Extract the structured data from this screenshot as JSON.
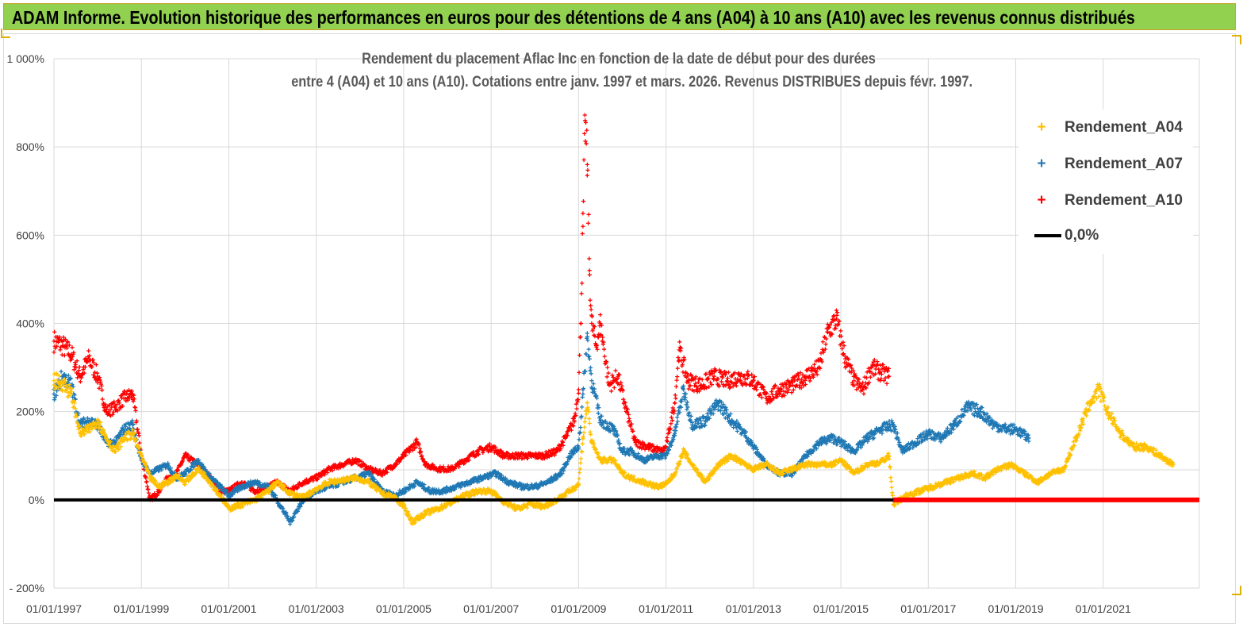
{
  "banner": {
    "title": "ADAM Informe. Evolution historique des performances en euros pour des détentions de 4 ans (A04) à 10 ans (A10) avec les revenus connus distribués"
  },
  "colors": {
    "banner_bg": "#92d050",
    "a04": "#ffc000",
    "a07": "#1f78b4",
    "a10": "#ff0000",
    "zero": "#000000",
    "grid": "#d9d9d9"
  },
  "chart_data": {
    "type": "scatter",
    "title_line1": "Rendement du placement Aflac Inc en fonction de la date de début pour des durées",
    "title_line2": "entre 4 (A04) et 10 ans (A10). Cotations entre janv. 1997 et mars. 2026. Revenus DISTRIBUES depuis févr. 1997.",
    "xlabel": "",
    "ylabel": "",
    "x_range": [
      1997.0,
      2023.2
    ],
    "ylim": [
      -200,
      1000
    ],
    "x_ticks": [
      {
        "x": 1997,
        "label": "01/01/1997"
      },
      {
        "x": 1999,
        "label": "01/01/1999"
      },
      {
        "x": 2001,
        "label": "01/01/2001"
      },
      {
        "x": 2003,
        "label": "01/01/2003"
      },
      {
        "x": 2005,
        "label": "01/01/2005"
      },
      {
        "x": 2007,
        "label": "01/01/2007"
      },
      {
        "x": 2009,
        "label": "01/01/2009"
      },
      {
        "x": 2011,
        "label": "01/01/2011"
      },
      {
        "x": 2013,
        "label": "01/01/2013"
      },
      {
        "x": 2015,
        "label": "01/01/2015"
      },
      {
        "x": 2017,
        "label": "01/01/2017"
      },
      {
        "x": 2019,
        "label": "01/01/2019"
      },
      {
        "x": 2021,
        "label": "01/01/2021"
      }
    ],
    "y_ticks": [
      {
        "y": 1000,
        "label": "1 000%"
      },
      {
        "y": 800,
        "label": "800%"
      },
      {
        "y": 600,
        "label": "600%"
      },
      {
        "y": 400,
        "label": "400%"
      },
      {
        "y": 200,
        "label": "200%"
      },
      {
        "y": 0,
        "label": "0%"
      },
      {
        "y": -200,
        "label": "- 200%"
      }
    ],
    "legend": [
      {
        "key": "a04",
        "label": "Rendement_A04"
      },
      {
        "key": "a07",
        "label": "Rendement_A07"
      },
      {
        "key": "a10",
        "label": "Rendement_A10"
      },
      {
        "key": "zero",
        "label": "0,0%"
      }
    ],
    "series": [
      {
        "name": "Rendement_A04",
        "key": "a04",
        "points": [
          [
            1997.0,
            270
          ],
          [
            1997.2,
            265
          ],
          [
            1997.4,
            240
          ],
          [
            1997.6,
            150
          ],
          [
            1997.8,
            160
          ],
          [
            1998.0,
            180
          ],
          [
            1998.2,
            140
          ],
          [
            1998.4,
            110
          ],
          [
            1998.6,
            140
          ],
          [
            1998.8,
            150
          ],
          [
            1999.0,
            100
          ],
          [
            1999.2,
            50
          ],
          [
            1999.4,
            30
          ],
          [
            1999.6,
            40
          ],
          [
            1999.8,
            55
          ],
          [
            2000.0,
            40
          ],
          [
            2000.3,
            70
          ],
          [
            2000.5,
            50
          ],
          [
            2000.8,
            10
          ],
          [
            2001.0,
            -20
          ],
          [
            2001.3,
            -10
          ],
          [
            2001.6,
            0
          ],
          [
            2001.9,
            20
          ],
          [
            2002.1,
            40
          ],
          [
            2002.4,
            15
          ],
          [
            2002.7,
            5
          ],
          [
            2003.0,
            25
          ],
          [
            2003.3,
            40
          ],
          [
            2003.6,
            45
          ],
          [
            2003.9,
            50
          ],
          [
            2004.2,
            40
          ],
          [
            2004.5,
            15
          ],
          [
            2004.8,
            5
          ],
          [
            2005.0,
            -15
          ],
          [
            2005.2,
            -50
          ],
          [
            2005.5,
            -30
          ],
          [
            2005.8,
            -20
          ],
          [
            2006.1,
            -5
          ],
          [
            2006.4,
            10
          ],
          [
            2006.7,
            20
          ],
          [
            2007.0,
            20
          ],
          [
            2007.3,
            -5
          ],
          [
            2007.6,
            -20
          ],
          [
            2007.9,
            -10
          ],
          [
            2008.2,
            -15
          ],
          [
            2008.5,
            0
          ],
          [
            2008.8,
            20
          ],
          [
            2009.0,
            35
          ],
          [
            2009.1,
            140
          ],
          [
            2009.2,
            220
          ],
          [
            2009.3,
            130
          ],
          [
            2009.5,
            90
          ],
          [
            2009.8,
            90
          ],
          [
            2010.0,
            60
          ],
          [
            2010.2,
            50
          ],
          [
            2010.5,
            40
          ],
          [
            2010.8,
            30
          ],
          [
            2011.0,
            35
          ],
          [
            2011.2,
            60
          ],
          [
            2011.4,
            110
          ],
          [
            2011.6,
            80
          ],
          [
            2011.9,
            40
          ],
          [
            2012.2,
            80
          ],
          [
            2012.5,
            100
          ],
          [
            2012.8,
            80
          ],
          [
            2013.0,
            70
          ],
          [
            2013.3,
            80
          ],
          [
            2013.6,
            60
          ],
          [
            2013.9,
            70
          ],
          [
            2014.2,
            80
          ],
          [
            2014.5,
            80
          ],
          [
            2014.8,
            80
          ],
          [
            2015.0,
            90
          ],
          [
            2015.3,
            60
          ],
          [
            2015.6,
            80
          ],
          [
            2015.9,
            85
          ],
          [
            2016.1,
            100
          ],
          [
            2016.2,
            -10
          ],
          [
            2016.5,
            10
          ],
          [
            2016.8,
            20
          ],
          [
            2017.1,
            30
          ],
          [
            2017.4,
            40
          ],
          [
            2017.7,
            50
          ],
          [
            2018.0,
            60
          ],
          [
            2018.3,
            50
          ],
          [
            2018.6,
            70
          ],
          [
            2018.9,
            80
          ],
          [
            2019.2,
            60
          ],
          [
            2019.5,
            40
          ],
          [
            2019.8,
            60
          ],
          [
            2020.1,
            70
          ],
          [
            2020.3,
            120
          ],
          [
            2020.5,
            170
          ],
          [
            2020.7,
            220
          ],
          [
            2020.9,
            250
          ],
          [
            2021.1,
            200
          ],
          [
            2021.4,
            150
          ],
          [
            2021.7,
            120
          ],
          [
            2022.0,
            120
          ],
          [
            2022.3,
            100
          ],
          [
            2022.6,
            80
          ]
        ]
      },
      {
        "name": "Rendement_A07",
        "key": "a07",
        "points": [
          [
            1997.0,
            240
          ],
          [
            1997.2,
            280
          ],
          [
            1997.4,
            260
          ],
          [
            1997.6,
            170
          ],
          [
            1997.8,
            180
          ],
          [
            1998.0,
            170
          ],
          [
            1998.2,
            130
          ],
          [
            1998.4,
            130
          ],
          [
            1998.6,
            160
          ],
          [
            1998.8,
            170
          ],
          [
            1999.0,
            90
          ],
          [
            1999.2,
            60
          ],
          [
            1999.4,
            70
          ],
          [
            1999.6,
            80
          ],
          [
            1999.8,
            50
          ],
          [
            2000.0,
            60
          ],
          [
            2000.3,
            90
          ],
          [
            2000.5,
            60
          ],
          [
            2000.8,
            30
          ],
          [
            2001.0,
            10
          ],
          [
            2001.3,
            30
          ],
          [
            2001.6,
            40
          ],
          [
            2001.9,
            30
          ],
          [
            2002.1,
            0
          ],
          [
            2002.4,
            -50
          ],
          [
            2002.7,
            0
          ],
          [
            2003.0,
            20
          ],
          [
            2003.3,
            30
          ],
          [
            2003.6,
            40
          ],
          [
            2003.9,
            50
          ],
          [
            2004.2,
            60
          ],
          [
            2004.5,
            20
          ],
          [
            2004.8,
            10
          ],
          [
            2005.0,
            20
          ],
          [
            2005.3,
            40
          ],
          [
            2005.6,
            20
          ],
          [
            2005.9,
            20
          ],
          [
            2006.2,
            30
          ],
          [
            2006.5,
            40
          ],
          [
            2006.8,
            50
          ],
          [
            2007.1,
            60
          ],
          [
            2007.4,
            40
          ],
          [
            2007.7,
            30
          ],
          [
            2008.0,
            30
          ],
          [
            2008.3,
            40
          ],
          [
            2008.6,
            60
          ],
          [
            2008.8,
            100
          ],
          [
            2009.0,
            120
          ],
          [
            2009.1,
            240
          ],
          [
            2009.2,
            370
          ],
          [
            2009.3,
            270
          ],
          [
            2009.5,
            180
          ],
          [
            2009.8,
            160
          ],
          [
            2010.0,
            110
          ],
          [
            2010.2,
            110
          ],
          [
            2010.5,
            90
          ],
          [
            2010.8,
            100
          ],
          [
            2011.0,
            100
          ],
          [
            2011.2,
            150
          ],
          [
            2011.4,
            250
          ],
          [
            2011.6,
            170
          ],
          [
            2011.9,
            180
          ],
          [
            2012.2,
            220
          ],
          [
            2012.5,
            180
          ],
          [
            2012.8,
            150
          ],
          [
            2013.0,
            120
          ],
          [
            2013.3,
            80
          ],
          [
            2013.6,
            60
          ],
          [
            2013.9,
            60
          ],
          [
            2014.2,
            100
          ],
          [
            2014.5,
            130
          ],
          [
            2014.8,
            140
          ],
          [
            2015.0,
            130
          ],
          [
            2015.3,
            110
          ],
          [
            2015.6,
            140
          ],
          [
            2015.9,
            160
          ],
          [
            2016.2,
            170
          ],
          [
            2016.4,
            110
          ],
          [
            2016.7,
            130
          ],
          [
            2017.0,
            150
          ],
          [
            2017.3,
            140
          ],
          [
            2017.6,
            170
          ],
          [
            2017.9,
            210
          ],
          [
            2018.2,
            200
          ],
          [
            2018.5,
            170
          ],
          [
            2018.8,
            160
          ],
          [
            2019.0,
            160
          ],
          [
            2019.3,
            140
          ]
        ]
      },
      {
        "name": "Rendement_A10",
        "key": "a10",
        "points": [
          [
            1997.0,
            360
          ],
          [
            1997.2,
            350
          ],
          [
            1997.4,
            330
          ],
          [
            1997.6,
            280
          ],
          [
            1997.8,
            320
          ],
          [
            1998.0,
            280
          ],
          [
            1998.2,
            200
          ],
          [
            1998.4,
            210
          ],
          [
            1998.6,
            230
          ],
          [
            1998.8,
            240
          ],
          [
            1999.0,
            100
          ],
          [
            1999.2,
            0
          ],
          [
            1999.4,
            20
          ],
          [
            1999.6,
            50
          ],
          [
            1999.8,
            60
          ],
          [
            2000.0,
            100
          ],
          [
            2000.3,
            80
          ],
          [
            2000.5,
            60
          ],
          [
            2000.8,
            20
          ],
          [
            2001.0,
            20
          ],
          [
            2001.3,
            40
          ],
          [
            2001.6,
            20
          ],
          [
            2001.9,
            30
          ],
          [
            2002.1,
            40
          ],
          [
            2002.4,
            20
          ],
          [
            2002.7,
            40
          ],
          [
            2003.0,
            50
          ],
          [
            2003.3,
            70
          ],
          [
            2003.6,
            80
          ],
          [
            2003.9,
            90
          ],
          [
            2004.2,
            70
          ],
          [
            2004.5,
            60
          ],
          [
            2004.8,
            80
          ],
          [
            2005.0,
            100
          ],
          [
            2005.3,
            130
          ],
          [
            2005.5,
            80
          ],
          [
            2005.8,
            70
          ],
          [
            2006.1,
            70
          ],
          [
            2006.4,
            90
          ],
          [
            2006.7,
            110
          ],
          [
            2007.0,
            120
          ],
          [
            2007.3,
            100
          ],
          [
            2007.6,
            100
          ],
          [
            2007.9,
            100
          ],
          [
            2008.2,
            100
          ],
          [
            2008.5,
            110
          ],
          [
            2008.7,
            140
          ],
          [
            2008.9,
            180
          ],
          [
            2009.0,
            250
          ],
          [
            2009.05,
            400
          ],
          [
            2009.1,
            620
          ],
          [
            2009.15,
            860
          ],
          [
            2009.2,
            760
          ],
          [
            2009.25,
            520
          ],
          [
            2009.3,
            400
          ],
          [
            2009.4,
            350
          ],
          [
            2009.5,
            400
          ],
          [
            2009.7,
            260
          ],
          [
            2009.9,
            280
          ],
          [
            2010.1,
            200
          ],
          [
            2010.3,
            130
          ],
          [
            2010.6,
            120
          ],
          [
            2010.9,
            110
          ],
          [
            2011.0,
            120
          ],
          [
            2011.2,
            220
          ],
          [
            2011.3,
            340
          ],
          [
            2011.5,
            270
          ],
          [
            2011.8,
            260
          ],
          [
            2012.1,
            280
          ],
          [
            2012.4,
            270
          ],
          [
            2012.7,
            280
          ],
          [
            2013.0,
            270
          ],
          [
            2013.3,
            230
          ],
          [
            2013.6,
            250
          ],
          [
            2013.9,
            260
          ],
          [
            2014.2,
            280
          ],
          [
            2014.5,
            300
          ],
          [
            2014.7,
            380
          ],
          [
            2014.9,
            410
          ],
          [
            2015.1,
            320
          ],
          [
            2015.3,
            270
          ],
          [
            2015.5,
            250
          ],
          [
            2015.7,
            300
          ],
          [
            2015.9,
            290
          ],
          [
            2016.1,
            280
          ]
        ]
      }
    ],
    "zero_line": 0,
    "a10_zero_from": 2016.2
  }
}
